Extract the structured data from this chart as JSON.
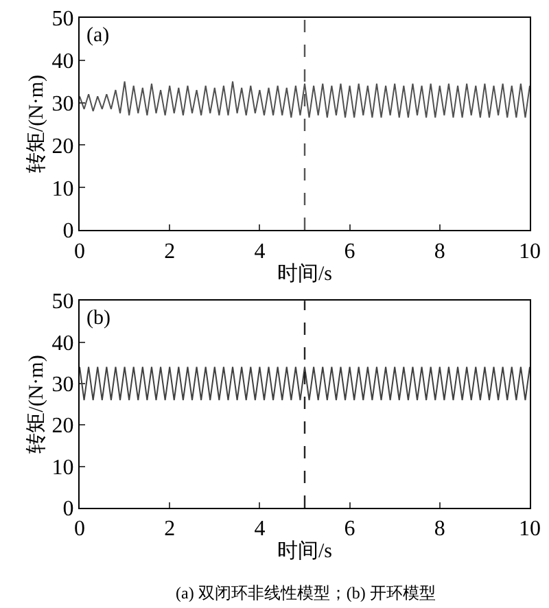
{
  "chart_data": [
    {
      "type": "line",
      "xlabel": "时间/s",
      "ylabel": "转矩/(N·m)",
      "xlim": [
        0,
        10
      ],
      "xticks": [
        0,
        2,
        4,
        6,
        8,
        10
      ],
      "ylim": [
        0,
        50
      ],
      "yticks": [
        0,
        10,
        20,
        30,
        40,
        50
      ],
      "marker": "none",
      "line_style": "solid",
      "annotations": [
        "(a)"
      ],
      "ref_lines": [
        {
          "axis": "x",
          "value": 5,
          "line_style": "dashed",
          "color": "#555555"
        }
      ],
      "series": [
        {
          "color": "#505050",
          "x": [
            0.0,
            0.1,
            0.2,
            0.3,
            0.4,
            0.5,
            0.6,
            0.7,
            0.8,
            0.9,
            1.0,
            1.1,
            1.2,
            1.3,
            1.4,
            1.5,
            1.6,
            1.7,
            1.8,
            1.9,
            2.0,
            2.1,
            2.2,
            2.3,
            2.4,
            2.5,
            2.6,
            2.7,
            2.8,
            2.9,
            3.0,
            3.1,
            3.2,
            3.3,
            3.4,
            3.5,
            3.6,
            3.7,
            3.8,
            3.9,
            4.0,
            4.1,
            4.2,
            4.3,
            4.4,
            4.5,
            4.6,
            4.7,
            4.8,
            4.9,
            5.0,
            5.1,
            5.2,
            5.3,
            5.4,
            5.5,
            5.6,
            5.7,
            5.8,
            5.9,
            6.0,
            6.1,
            6.2,
            6.3,
            6.4,
            6.5,
            6.6,
            6.7,
            6.8,
            6.9,
            7.0,
            7.1,
            7.2,
            7.3,
            7.4,
            7.5,
            7.6,
            7.7,
            7.8,
            7.9,
            8.0,
            8.1,
            8.2,
            8.3,
            8.4,
            8.5,
            8.6,
            8.7,
            8.8,
            8.9,
            9.0,
            9.1,
            9.2,
            9.3,
            9.4,
            9.5,
            9.6,
            9.7,
            9.8,
            9.9,
            10.0
          ],
          "values": [
            31.5,
            28.5,
            32,
            28,
            31.5,
            28.5,
            32,
            28.5,
            33,
            27.5,
            35,
            27,
            34,
            27.5,
            33.5,
            27,
            34.5,
            27.5,
            33,
            27,
            34,
            27.5,
            33.5,
            27,
            34,
            27.5,
            33,
            27,
            34,
            27.5,
            33.5,
            27,
            34,
            27,
            35,
            27.5,
            33.5,
            27,
            34,
            27.5,
            33,
            27,
            33.5,
            27,
            34,
            27,
            33.5,
            26.5,
            34,
            27,
            34.5,
            26.5,
            34,
            27,
            34.5,
            26.5,
            34,
            27,
            34.5,
            26.5,
            34,
            26.5,
            34.5,
            27,
            34,
            26.5,
            34.5,
            26.5,
            34,
            27,
            34.5,
            26.5,
            34,
            26.5,
            34.5,
            27,
            34,
            26.5,
            34.5,
            26.5,
            34,
            27,
            34.5,
            26.5,
            34,
            26.5,
            34.5,
            27,
            34,
            26.5,
            34.5,
            26.5,
            34,
            27,
            34.5,
            26.5,
            34,
            26.5,
            34.5,
            26.5,
            34
          ]
        }
      ]
    },
    {
      "type": "line",
      "xlabel": "时间/s",
      "ylabel": "转矩/(N·m)",
      "xlim": [
        0,
        10
      ],
      "xticks": [
        0,
        2,
        4,
        6,
        8,
        10
      ],
      "ylim": [
        0,
        50
      ],
      "yticks": [
        0,
        10,
        20,
        30,
        40,
        50
      ],
      "marker": "none",
      "line_style": "solid",
      "annotations": [
        "(b)",
        "(a) 双闭环非线性模型；(b) 开环模型"
      ],
      "ref_lines": [
        {
          "axis": "x",
          "value": 5,
          "line_style": "dashed",
          "color": "#222222"
        }
      ],
      "series": [
        {
          "color": "#404040",
          "x": [
            0.0,
            0.1,
            0.2,
            0.3,
            0.4,
            0.5,
            0.6,
            0.7,
            0.8,
            0.9,
            1.0,
            1.1,
            1.2,
            1.3,
            1.4,
            1.5,
            1.6,
            1.7,
            1.8,
            1.9,
            2.0,
            2.1,
            2.2,
            2.3,
            2.4,
            2.5,
            2.6,
            2.7,
            2.8,
            2.9,
            3.0,
            3.1,
            3.2,
            3.3,
            3.4,
            3.5,
            3.6,
            3.7,
            3.8,
            3.9,
            4.0,
            4.1,
            4.2,
            4.3,
            4.4,
            4.5,
            4.6,
            4.7,
            4.8,
            4.9,
            5.0,
            5.1,
            5.2,
            5.3,
            5.4,
            5.5,
            5.6,
            5.7,
            5.8,
            5.9,
            6.0,
            6.1,
            6.2,
            6.3,
            6.4,
            6.5,
            6.6,
            6.7,
            6.8,
            6.9,
            7.0,
            7.1,
            7.2,
            7.3,
            7.4,
            7.5,
            7.6,
            7.7,
            7.8,
            7.9,
            8.0,
            8.1,
            8.2,
            8.3,
            8.4,
            8.5,
            8.6,
            8.7,
            8.8,
            8.9,
            9.0,
            9.1,
            9.2,
            9.3,
            9.4,
            9.5,
            9.6,
            9.7,
            9.8,
            9.9,
            10.0
          ],
          "values": [
            34,
            26,
            34,
            26,
            34,
            26,
            34,
            26,
            34,
            26,
            34,
            26,
            34,
            26,
            34,
            26,
            34,
            26,
            34,
            26,
            34,
            26,
            34,
            26,
            34,
            26,
            34,
            26,
            34,
            26,
            34,
            26,
            34,
            26,
            34,
            26,
            34,
            26,
            34,
            26,
            34,
            26,
            34,
            26,
            34,
            26,
            34,
            26,
            34,
            26,
            34,
            26,
            34,
            26,
            34,
            26,
            34,
            26,
            34,
            26,
            34,
            26,
            34,
            26,
            34,
            26,
            34,
            26,
            34,
            26,
            34,
            26,
            34,
            26,
            34,
            26,
            34,
            26,
            34,
            26,
            34,
            26,
            34,
            26,
            34,
            26,
            34,
            26,
            34,
            26,
            34,
            26,
            34,
            26,
            34,
            26,
            34,
            26,
            34,
            26,
            34
          ]
        }
      ]
    }
  ]
}
